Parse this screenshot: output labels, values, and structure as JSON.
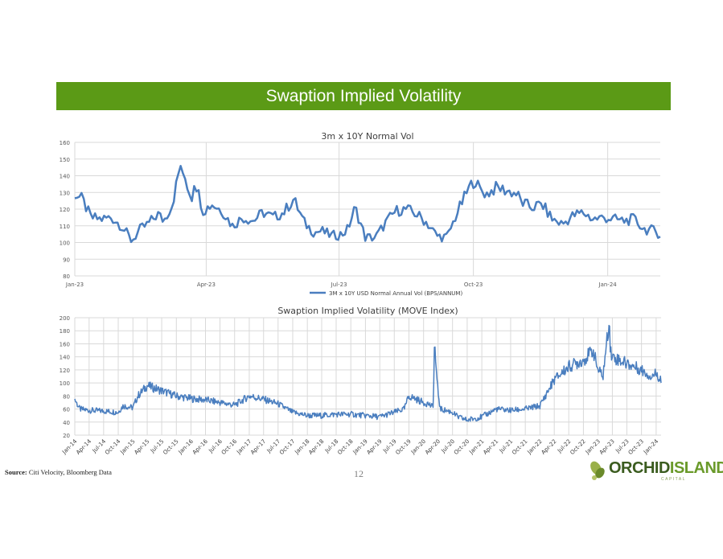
{
  "banner": {
    "title": "Swaption Implied Volatility",
    "color": "#5b9a16"
  },
  "footer": {
    "source_label": "Source:",
    "source_text": "Citi Velocity, Bloomberg Data",
    "page_number": "12",
    "logo_part1": "ORCHID",
    "logo_part2": "ISLAND",
    "logo_sub": "CAPITAL"
  },
  "chart_data": [
    {
      "type": "line",
      "title": "3m x 10Y Normal Vol",
      "x_tick_labels": [
        "Jan-23",
        "Apr-23",
        "Jul-23",
        "Oct-23",
        "Jan-24"
      ],
      "ylim": [
        80,
        160
      ],
      "y_ticks": [
        80,
        90,
        100,
        110,
        120,
        130,
        140,
        150,
        160
      ],
      "grid": true,
      "legend_position": "bottom",
      "color": "#4a7ebf",
      "series": [
        {
          "name": "3M x 10Y USD Normal Annual Vol (BPS/ANNUM)",
          "x": [
            "2023-01-01",
            "2023-01-06",
            "2023-01-12",
            "2023-01-19",
            "2023-01-26",
            "2023-02-02",
            "2023-02-09",
            "2023-02-15",
            "2023-02-20",
            "2023-02-27",
            "2023-03-03",
            "2023-03-07",
            "2023-03-09",
            "2023-03-10",
            "2023-03-13",
            "2023-03-14",
            "2023-03-15",
            "2023-03-17",
            "2023-03-22",
            "2023-03-24",
            "2023-03-30",
            "2023-04-05",
            "2023-04-12",
            "2023-04-19",
            "2023-04-26",
            "2023-05-03",
            "2023-05-10",
            "2023-05-17",
            "2023-05-24",
            "2023-05-31",
            "2023-06-07",
            "2023-06-14",
            "2023-06-19",
            "2023-06-26",
            "2023-07-03",
            "2023-07-07",
            "2023-07-12",
            "2023-07-19",
            "2023-07-26",
            "2023-08-02",
            "2023-08-09",
            "2023-08-16",
            "2023-08-23",
            "2023-08-30",
            "2023-09-06",
            "2023-09-13",
            "2023-09-20",
            "2023-09-27",
            "2023-10-02",
            "2023-10-05",
            "2023-10-10",
            "2023-10-17",
            "2023-10-24",
            "2023-10-31",
            "2023-11-03",
            "2023-11-10",
            "2023-11-17",
            "2023-11-24",
            "2023-12-01",
            "2023-12-08",
            "2023-12-15",
            "2023-12-22",
            "2023-12-29",
            "2024-01-05",
            "2024-01-12",
            "2024-01-19",
            "2024-01-26",
            "2024-02-02",
            "2024-02-06"
          ],
          "values": [
            129,
            126,
            115,
            114,
            115,
            110,
            101,
            108,
            111,
            117,
            113,
            120,
            123,
            128,
            141,
            156,
            137,
            140,
            126,
            138,
            119,
            123,
            119,
            110,
            115,
            113,
            118,
            115,
            118,
            126,
            112,
            106,
            107,
            104,
            105,
            108,
            121,
            103,
            103,
            112,
            119,
            120,
            117,
            112,
            104,
            103,
            118,
            131,
            138,
            132,
            129,
            133,
            131,
            129,
            124,
            121,
            123,
            114,
            111,
            116,
            118,
            114,
            115,
            114,
            113,
            114,
            108,
            107,
            105
          ]
        }
      ]
    },
    {
      "type": "line",
      "title": "Swaption Implied Volatility (MOVE Index)",
      "x_tick_labels": [
        "Jan-14",
        "Apr-14",
        "Jul-14",
        "Oct-14",
        "Jan-15",
        "Apr-15",
        "Jul-15",
        "Oct-15",
        "Jan-16",
        "Apr-16",
        "Jul-16",
        "Oct-16",
        "Jan-17",
        "Apr-17",
        "Jul-17",
        "Oct-17",
        "Jan-18",
        "Apr-18",
        "Jul-18",
        "Oct-18",
        "Jan-19",
        "Apr-19",
        "Jul-19",
        "Oct-19",
        "Jan-20",
        "Apr-20",
        "Jul-20",
        "Oct-20",
        "Jan-21",
        "Apr-21",
        "Jul-21",
        "Oct-21",
        "Jan-22",
        "Apr-22",
        "Jul-22",
        "Oct-22",
        "Jan-23",
        "Apr-23",
        "Jul-23",
        "Oct-23",
        "Jan-24"
      ],
      "ylim": [
        20,
        200
      ],
      "y_ticks": [
        20,
        40,
        60,
        80,
        100,
        120,
        140,
        160,
        180,
        200
      ],
      "grid": true,
      "color": "#4a7ebf",
      "series": [
        {
          "name": "MOVE Index",
          "x": [
            "2014-01-01",
            "2014-02-01",
            "2014-04-01",
            "2014-07-01",
            "2014-10-01",
            "2014-10-15",
            "2014-11-01",
            "2015-01-01",
            "2015-02-01",
            "2015-04-01",
            "2015-07-01",
            "2015-10-01",
            "2016-01-01",
            "2016-04-01",
            "2016-07-01",
            "2016-10-01",
            "2017-01-01",
            "2017-04-01",
            "2017-07-01",
            "2017-10-01",
            "2018-01-01",
            "2018-04-01",
            "2018-07-01",
            "2018-10-01",
            "2019-01-01",
            "2019-04-01",
            "2019-07-01",
            "2019-09-01",
            "2019-10-01",
            "2020-01-01",
            "2020-02-01",
            "2020-03-01",
            "2020-03-10",
            "2020-03-25",
            "2020-04-15",
            "2020-07-01",
            "2020-08-01",
            "2020-10-01",
            "2021-01-01",
            "2021-04-01",
            "2021-07-01",
            "2021-10-01",
            "2022-01-01",
            "2022-04-01",
            "2022-07-01",
            "2022-10-01",
            "2022-12-01",
            "2023-01-01",
            "2023-02-01",
            "2023-03-13",
            "2023-03-20",
            "2023-04-01",
            "2023-07-01",
            "2023-10-01",
            "2023-12-01",
            "2024-01-01",
            "2024-02-01"
          ],
          "values": [
            75,
            60,
            58,
            57,
            55,
            60,
            65,
            62,
            80,
            96,
            88,
            80,
            76,
            74,
            70,
            66,
            80,
            75,
            68,
            55,
            50,
            50,
            52,
            52,
            50,
            48,
            55,
            60,
            80,
            70,
            68,
            62,
            165,
            100,
            60,
            55,
            48,
            43,
            48,
            60,
            58,
            60,
            65,
            105,
            125,
            135,
            150,
            120,
            110,
            198,
            150,
            140,
            130,
            120,
            110,
            115,
            105
          ]
        }
      ]
    }
  ]
}
